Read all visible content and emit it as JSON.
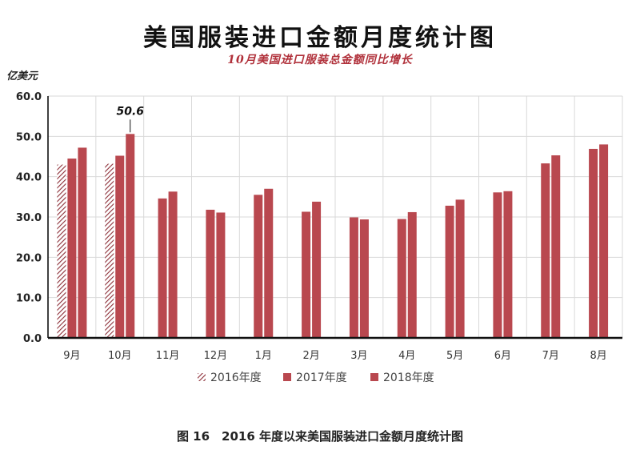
{
  "chart_data": {
    "type": "bar",
    "title": "美国服装进口金额月度统计图",
    "subtitle": "10月美国进口服装总金额同比增长",
    "ylabel": "亿美元",
    "caption": "图 16　2016 年度以来美国服装进口金额月度统计图",
    "categories": [
      "9月",
      "10月",
      "11月",
      "12月",
      "1月",
      "2月",
      "3月",
      "4月",
      "5月",
      "6月",
      "7月",
      "8月"
    ],
    "ylim": [
      0,
      60
    ],
    "yticks": [
      "0.0",
      "10.0",
      "20.0",
      "30.0",
      "40.0",
      "50.0",
      "60.0"
    ],
    "grid": true,
    "legend_position": "bottom",
    "series": [
      {
        "name": "2016年度",
        "values": [
          43.0,
          43.2,
          null,
          null,
          null,
          null,
          null,
          null,
          null,
          null,
          null,
          null
        ]
      },
      {
        "name": "2017年度",
        "values": [
          44.5,
          45.2,
          34.6,
          31.8,
          35.5,
          31.3,
          29.9,
          29.5,
          32.8,
          36.1,
          43.3,
          46.9
        ]
      },
      {
        "name": "2018年度",
        "values": [
          47.2,
          50.6,
          36.3,
          31.1,
          37.0,
          33.8,
          29.4,
          31.2,
          34.3,
          36.4,
          45.3,
          48.0
        ]
      }
    ],
    "annotation": {
      "category": "10月",
      "series": "2018年度",
      "text": "50.6"
    },
    "colors": {
      "bar": "#b9484f",
      "hatch": "#8c2f38",
      "axis": "#111111",
      "grid": "#d9d9d9"
    }
  }
}
